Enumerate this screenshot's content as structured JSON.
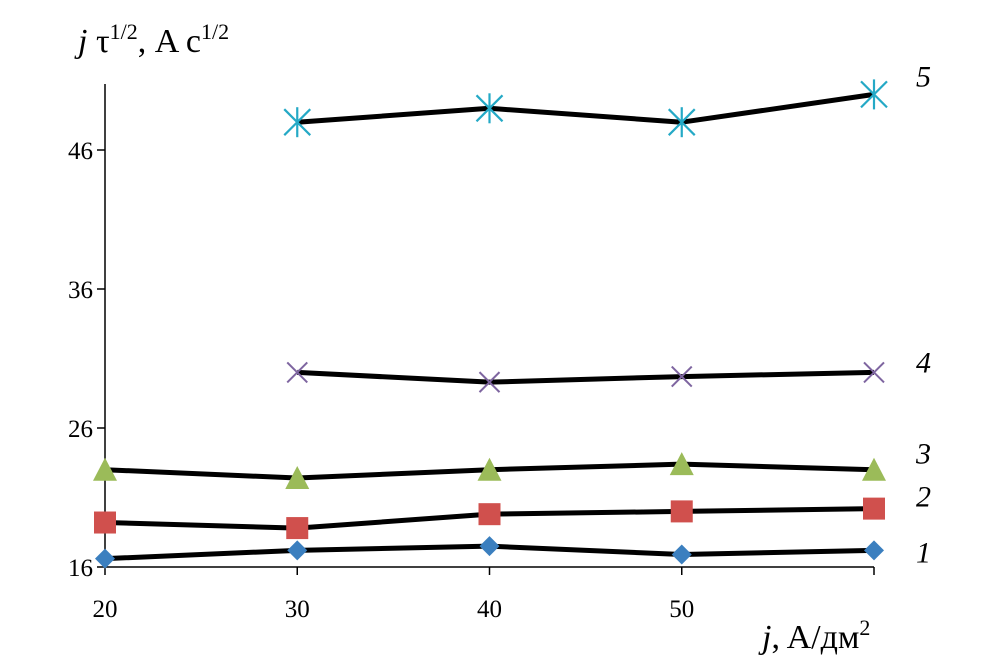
{
  "chart_data": {
    "type": "line",
    "title": "",
    "ylabel_parts": {
      "var": "j",
      "base": " τ",
      "sup": "1/2",
      "unit": ", A c",
      "unit_sup": "1/2"
    },
    "xlabel_parts": {
      "var": "j",
      "unit": ", A/дм",
      "unit_sup": "2"
    },
    "xlim": [
      20,
      60
    ],
    "ylim": [
      16,
      50
    ],
    "x_ticks": [
      "20",
      "30",
      "40",
      "50"
    ],
    "y_ticks": [
      "16",
      "26",
      "36",
      "46"
    ],
    "grid": false,
    "series": [
      {
        "label": "1",
        "marker": "diamond",
        "marker_color": "#3B7FBF",
        "x": [
          20,
          30,
          40,
          50,
          60
        ],
        "y": [
          16.6,
          17.2,
          17.5,
          16.9,
          17.2
        ]
      },
      {
        "label": "2",
        "marker": "square",
        "marker_color": "#D0504D",
        "x": [
          20,
          30,
          40,
          50,
          60
        ],
        "y": [
          19.2,
          18.8,
          19.8,
          20.0,
          20.2
        ]
      },
      {
        "label": "3",
        "marker": "triangle",
        "marker_color": "#9BBB59",
        "x": [
          20,
          30,
          40,
          50,
          60
        ],
        "y": [
          23.0,
          22.4,
          23.0,
          23.4,
          23.0
        ]
      },
      {
        "label": "4",
        "marker": "x",
        "marker_color": "#7E65A0",
        "x": [
          30,
          40,
          50,
          60
        ],
        "y": [
          30.0,
          29.3,
          29.7,
          30.0
        ]
      },
      {
        "label": "5",
        "marker": "star",
        "marker_color": "#24A9C6",
        "x": [
          30,
          40,
          50,
          60
        ],
        "y": [
          48.0,
          49.0,
          48.0,
          50.0
        ]
      }
    ]
  }
}
